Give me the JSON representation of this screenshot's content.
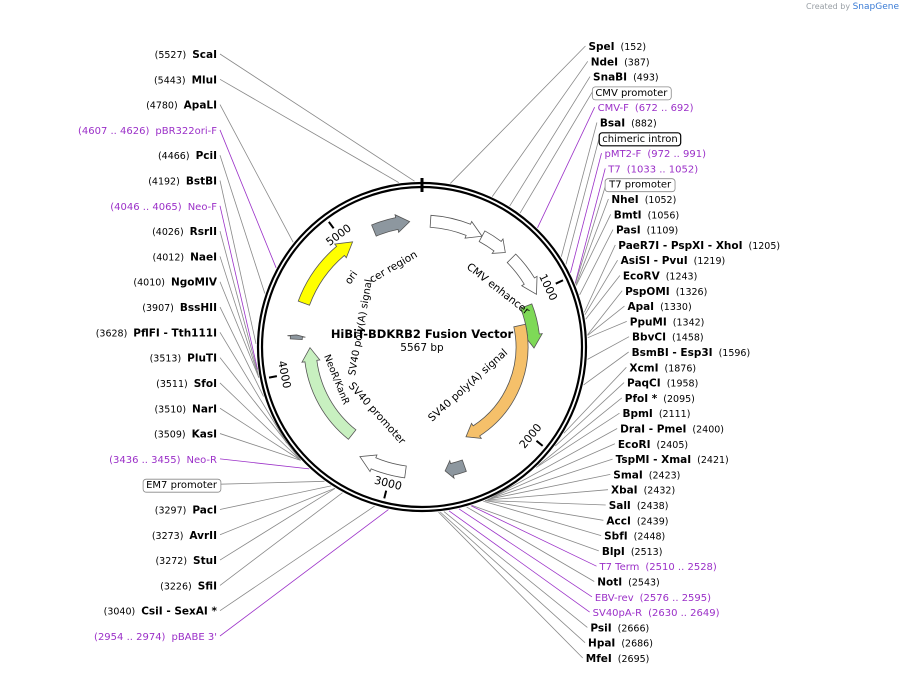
{
  "branding": {
    "prefix": "Created by",
    "name": "SnapGene"
  },
  "map": {
    "title": "HiBiT-BDKRB2 Fusion Vector",
    "length_label": "5567 bp",
    "total_bp": 5567
  },
  "ticks": [
    {
      "pos": 1000,
      "label": "1000"
    },
    {
      "pos": 2000,
      "label": "2000"
    },
    {
      "pos": 3000,
      "label": "3000"
    },
    {
      "pos": 4000,
      "label": "4000"
    },
    {
      "pos": 5000,
      "label": "5000"
    }
  ],
  "labels": [
    {
      "kind": "site",
      "pos": 5527,
      "name": "ScaI",
      "pos_text": "(5527)",
      "anchor": "end"
    },
    {
      "kind": "site",
      "pos": 5443,
      "name": "MluI",
      "pos_text": "(5443)",
      "anchor": "end"
    },
    {
      "kind": "site",
      "pos": 152,
      "name": "SpeI",
      "pos_text": "(152)",
      "anchor": "start"
    },
    {
      "kind": "site",
      "pos": 387,
      "name": "NdeI",
      "pos_text": "(387)",
      "anchor": "start"
    },
    {
      "kind": "site",
      "pos": 493,
      "name": "SnaBI",
      "pos_text": "(493)",
      "anchor": "start"
    },
    {
      "kind": "feature",
      "pos": 560,
      "name": "CMV promoter",
      "anchor": "start"
    },
    {
      "kind": "primer",
      "pos": 682,
      "name": "CMV-F",
      "pos_text": "(672 .. 692)",
      "anchor": "start"
    },
    {
      "kind": "site",
      "pos": 882,
      "name": "BsaI",
      "pos_text": "(882)",
      "anchor": "start"
    },
    {
      "kind": "feature_box",
      "pos": 930,
      "name": "chimeric intron",
      "anchor": "start"
    },
    {
      "kind": "primer",
      "pos": 981,
      "name": "pMT2-F",
      "pos_text": "(972 .. 991)",
      "anchor": "start"
    },
    {
      "kind": "primer",
      "pos": 1042,
      "name": "T7",
      "pos_text": "(1033 .. 1052)",
      "anchor": "start"
    },
    {
      "kind": "feature",
      "pos": 1045,
      "name": "T7 promoter",
      "anchor": "start"
    },
    {
      "kind": "site",
      "pos": 1052,
      "name": "NheI",
      "pos_text": "(1052)",
      "anchor": "start"
    },
    {
      "kind": "site",
      "pos": 1056,
      "name": "BmtI",
      "pos_text": "(1056)",
      "anchor": "start"
    },
    {
      "kind": "site",
      "pos": 1109,
      "name": "PasI",
      "pos_text": "(1109)",
      "anchor": "start"
    },
    {
      "kind": "site_multi",
      "pos": 1205,
      "name": "PaeR7I - PspXI - XhoI",
      "pos_text": "(1205)",
      "anchor": "start"
    },
    {
      "kind": "site_multi",
      "pos": 1219,
      "name": "AsiSI - PvuI",
      "pos_text": "(1219)",
      "anchor": "start"
    },
    {
      "kind": "site",
      "pos": 1243,
      "name": "EcoRV",
      "pos_text": "(1243)",
      "anchor": "start"
    },
    {
      "kind": "site",
      "pos": 1326,
      "name": "PspOMI",
      "pos_text": "(1326)",
      "anchor": "start"
    },
    {
      "kind": "site",
      "pos": 1330,
      "name": "ApaI",
      "pos_text": "(1330)",
      "anchor": "start"
    },
    {
      "kind": "site",
      "pos": 1342,
      "name": "PpuMI",
      "pos_text": "(1342)",
      "anchor": "start"
    },
    {
      "kind": "site",
      "pos": 1458,
      "name": "BbvCI",
      "pos_text": "(1458)",
      "anchor": "start"
    },
    {
      "kind": "site_multi",
      "pos": 1596,
      "name": "BsmBI - Esp3I",
      "pos_text": "(1596)",
      "anchor": "start"
    },
    {
      "kind": "site",
      "pos": 1876,
      "name": "XcmI",
      "pos_text": "(1876)",
      "anchor": "start"
    },
    {
      "kind": "site",
      "pos": 1958,
      "name": "PaqCI",
      "pos_text": "(1958)",
      "anchor": "start"
    },
    {
      "kind": "site",
      "pos": 2095,
      "name": "PfoI *",
      "pos_text": "(2095)",
      "anchor": "start"
    },
    {
      "kind": "site",
      "pos": 2111,
      "name": "BpmI",
      "pos_text": "(2111)",
      "anchor": "start"
    },
    {
      "kind": "site_multi",
      "pos": 2400,
      "name": "DraI - PmeI",
      "pos_text": "(2400)",
      "anchor": "start"
    },
    {
      "kind": "site",
      "pos": 2405,
      "name": "EcoRI",
      "pos_text": "(2405)",
      "anchor": "start"
    },
    {
      "kind": "site_multi",
      "pos": 2421,
      "name": "TspMI - XmaI",
      "pos_text": "(2421)",
      "anchor": "start"
    },
    {
      "kind": "site",
      "pos": 2423,
      "name": "SmaI",
      "pos_text": "(2423)",
      "anchor": "start"
    },
    {
      "kind": "site",
      "pos": 2432,
      "name": "XbaI",
      "pos_text": "(2432)",
      "anchor": "start"
    },
    {
      "kind": "site",
      "pos": 2438,
      "name": "SalI",
      "pos_text": "(2438)",
      "anchor": "start"
    },
    {
      "kind": "site",
      "pos": 2439,
      "name": "AccI",
      "pos_text": "(2439)",
      "anchor": "start"
    },
    {
      "kind": "site",
      "pos": 2448,
      "name": "SbfI",
      "pos_text": "(2448)",
      "anchor": "start"
    },
    {
      "kind": "site",
      "pos": 2513,
      "name": "BlpI",
      "pos_text": "(2513)",
      "anchor": "start"
    },
    {
      "kind": "primer",
      "pos": 2519,
      "name": "T7 Term",
      "pos_text": "(2510 .. 2528)",
      "anchor": "start"
    },
    {
      "kind": "site",
      "pos": 2543,
      "name": "NotI",
      "pos_text": "(2543)",
      "anchor": "start"
    },
    {
      "kind": "primer",
      "pos": 2585,
      "name": "EBV-rev",
      "pos_text": "(2576 .. 2595)",
      "anchor": "start"
    },
    {
      "kind": "primer",
      "pos": 2639,
      "name": "SV40pA-R",
      "pos_text": "(2630 .. 2649)",
      "anchor": "start"
    },
    {
      "kind": "site",
      "pos": 2666,
      "name": "PsiI",
      "pos_text": "(2666)",
      "anchor": "start"
    },
    {
      "kind": "site",
      "pos": 2686,
      "name": "HpaI",
      "pos_text": "(2686)",
      "anchor": "start"
    },
    {
      "kind": "site",
      "pos": 2695,
      "name": "MfeI",
      "pos_text": "(2695)",
      "anchor": "start"
    },
    {
      "kind": "primer",
      "pos": 2964,
      "name": "pBABE 3'",
      "pos_text": "(2954 .. 2974)",
      "anchor": "end"
    },
    {
      "kind": "site_multi",
      "pos": 3040,
      "name": "CsiI - SexAI *",
      "pos_text": "(3040)",
      "anchor": "end"
    },
    {
      "kind": "site",
      "pos": 3226,
      "name": "SfiI",
      "pos_text": "(3226)",
      "anchor": "end"
    },
    {
      "kind": "site",
      "pos": 3272,
      "name": "StuI",
      "pos_text": "(3272)",
      "anchor": "end"
    },
    {
      "kind": "site",
      "pos": 3273,
      "name": "AvrII",
      "pos_text": "(3273)",
      "anchor": "end"
    },
    {
      "kind": "site",
      "pos": 3297,
      "name": "PacI",
      "pos_text": "(3297)",
      "anchor": "end"
    },
    {
      "kind": "feature",
      "pos": 3340,
      "name": "EM7 promoter",
      "anchor": "end"
    },
    {
      "kind": "primer",
      "pos": 3445,
      "name": "Neo-R",
      "pos_text": "(3436 .. 3455)",
      "anchor": "end"
    },
    {
      "kind": "site",
      "pos": 3509,
      "name": "KasI",
      "pos_text": "(3509)",
      "anchor": "end"
    },
    {
      "kind": "site",
      "pos": 3510,
      "name": "NarI",
      "pos_text": "(3510)",
      "anchor": "end"
    },
    {
      "kind": "site",
      "pos": 3511,
      "name": "SfoI",
      "pos_text": "(3511)",
      "anchor": "end"
    },
    {
      "kind": "site",
      "pos": 3513,
      "name": "PluTI",
      "pos_text": "(3513)",
      "anchor": "end"
    },
    {
      "kind": "site_multi",
      "pos": 3628,
      "name": "PflFI - Tth111I",
      "pos_text": "(3628)",
      "anchor": "end"
    },
    {
      "kind": "site",
      "pos": 3907,
      "name": "BssHII",
      "pos_text": "(3907)",
      "anchor": "end"
    },
    {
      "kind": "site",
      "pos": 4010,
      "name": "NgoMIV",
      "pos_text": "(4010)",
      "anchor": "end"
    },
    {
      "kind": "site",
      "pos": 4012,
      "name": "NaeI",
      "pos_text": "(4012)",
      "anchor": "end"
    },
    {
      "kind": "site",
      "pos": 4026,
      "name": "RsrII",
      "pos_text": "(4026)",
      "anchor": "end"
    },
    {
      "kind": "primer",
      "pos": 4055,
      "name": "Neo-F",
      "pos_text": "(4046 .. 4065)",
      "anchor": "end"
    },
    {
      "kind": "site",
      "pos": 4192,
      "name": "BstBI",
      "pos_text": "(4192)",
      "anchor": "end"
    },
    {
      "kind": "site",
      "pos": 4466,
      "name": "PciI",
      "pos_text": "(4466)",
      "anchor": "end"
    },
    {
      "kind": "primer",
      "pos": 4616,
      "name": "pBR322ori-F",
      "pos_text": "(4607 .. 4626)",
      "anchor": "end"
    },
    {
      "kind": "site",
      "pos": 4780,
      "name": "ApaLI",
      "pos_text": "(4780)",
      "anchor": "end"
    }
  ],
  "features": [
    {
      "name": "CMV enhancer",
      "start": 60,
      "end": 440,
      "color": "#ffffff",
      "ring": 0
    },
    {
      "name": "CMV promoter",
      "start": 440,
      "end": 640,
      "color": "#ffffff",
      "ring": 0
    },
    {
      "name": "chimeric intron",
      "start": 700,
      "end": 1010,
      "color": "#ffffff",
      "ring": 0
    },
    {
      "name": "HiBiT",
      "start": 1060,
      "end": 1400,
      "color": "#7ed957",
      "ring": 1
    },
    {
      "name": "BDKRB2",
      "start": 1200,
      "end": 2380,
      "color": "#f5c06a",
      "ring": 2
    },
    {
      "name": "SV40 poly(A) signal",
      "start": 2480,
      "end": 2620,
      "color": "#8d979f",
      "ring": 0
    },
    {
      "name": "SV40 promoter",
      "start": 2900,
      "end": 3240,
      "color": "#ffffff",
      "ring": 0
    },
    {
      "name": "NeoR/KanR",
      "start": 3380,
      "end": 4170,
      "color": "#c8f0c0",
      "ring": 1
    },
    {
      "name": "HSV TK poly(A)",
      "start": 4230,
      "end": 4260,
      "color": "#8d979f",
      "ring": 0
    },
    {
      "name": "ori",
      "start": 4490,
      "end": 5050,
      "color": "#ffff00",
      "ring": 0
    },
    {
      "name": "cer region",
      "start": 5220,
      "end": 5480,
      "color": "#8d979f",
      "ring": 0
    }
  ],
  "inner_labels": [
    {
      "text": "CMV enhancer"
    },
    {
      "text": "cer region"
    },
    {
      "text": "ori"
    },
    {
      "text": "SV40 poly(A) signal"
    },
    {
      "text": "SV40 promoter"
    },
    {
      "text": "NeoR/KanR"
    },
    {
      "text": "SV40 poly(A) signal"
    }
  ]
}
